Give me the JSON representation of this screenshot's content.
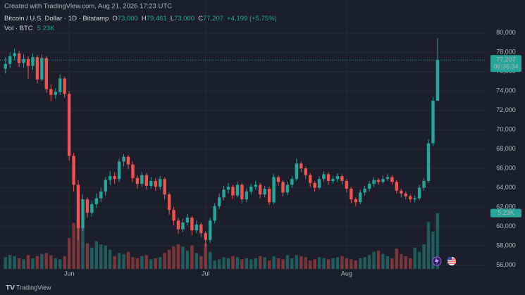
{
  "header": {
    "created": "Created with TradingView.com, Aug 21, 2026 17:23 UTC",
    "symbol": "Bitcoin / U.S. Dollar · 1D · Bitstamp",
    "ohlc": [
      {
        "key": "O",
        "text": "73,000"
      },
      {
        "key": "H",
        "text": "79,461"
      },
      {
        "key": "L",
        "text": "73,000"
      },
      {
        "key": "C",
        "text": "77,207"
      }
    ],
    "change": "+4,199 (+5.75%)",
    "volume_legend": "Vol · BTC",
    "volume_text": "5.23K"
  },
  "chart_data": {
    "type": "candlestick",
    "up_color": "#26a69a",
    "down_color": "#ef5350",
    "grid": true,
    "xlim": [
      -1.2,
      105.7
    ],
    "xticks": [
      {
        "value": 14,
        "label": "Jun"
      },
      {
        "value": 44,
        "label": "Jul"
      },
      {
        "value": 75,
        "label": "Aug"
      }
    ],
    "ylim": [
      55600,
      80500
    ],
    "yticks": [
      {
        "value": 56000,
        "label": "56,000"
      },
      {
        "value": 58000,
        "label": "58,000"
      },
      {
        "value": 60000,
        "label": "60,000"
      },
      {
        "value": 62000,
        "label": "62,000"
      },
      {
        "value": 64000,
        "label": "64,000"
      },
      {
        "value": 66000,
        "label": "66,000"
      },
      {
        "value": 68000,
        "label": "68,000"
      },
      {
        "value": 70000,
        "label": "70,000"
      },
      {
        "value": 72000,
        "label": "72,000"
      },
      {
        "value": 74000,
        "label": "74,000"
      },
      {
        "value": 76000,
        "label": "76,000"
      },
      {
        "value": 78000,
        "label": "78,000"
      },
      {
        "value": 80000,
        "label": "80,000"
      }
    ],
    "vlim": [
      0,
      5600
    ],
    "open": [
      76300,
      76800,
      77600,
      77900,
      76900,
      77300,
      76600,
      77500,
      75200,
      77400,
      74200,
      73600,
      73900,
      75300,
      73700,
      67300,
      64300,
      59800,
      62800,
      61400,
      62300,
      62900,
      63600,
      64800,
      65200,
      64900,
      66700,
      67200,
      66400,
      65000,
      64400,
      65300,
      64200,
      64700,
      64100,
      64900,
      63300,
      61700,
      60600,
      59700,
      60400,
      60900,
      59600,
      60200,
      59300,
      58600,
      60600,
      62100,
      63000,
      63800,
      64100,
      63200,
      64300,
      62800,
      63600,
      64100,
      64300,
      63300,
      63900,
      62500,
      65100,
      64600,
      63500,
      64300,
      64900,
      66500,
      66000,
      65300,
      64500,
      64000,
      64900,
      65400,
      64700,
      64900,
      65200,
      64700,
      63900,
      62800,
      62500,
      63500,
      63900,
      64400,
      64800,
      64600,
      64900,
      65100,
      64600,
      63700,
      63400,
      63100,
      62800,
      62900,
      64000,
      64700,
      68600,
      73000
    ],
    "high": [
      77500,
      78000,
      78400,
      78200,
      77800,
      77600,
      77900,
      77700,
      77800,
      77600,
      74700,
      74300,
      75700,
      75500,
      74000,
      67600,
      64800,
      63300,
      63000,
      62700,
      63400,
      64000,
      65100,
      65700,
      65600,
      67000,
      67500,
      67400,
      66700,
      65300,
      65600,
      65500,
      65100,
      65000,
      65200,
      65100,
      63500,
      62000,
      60900,
      60800,
      61300,
      61100,
      60600,
      60400,
      59500,
      60900,
      62400,
      63400,
      64200,
      64500,
      64300,
      64600,
      64500,
      63900,
      64400,
      64700,
      64500,
      64200,
      64100,
      65400,
      65300,
      64800,
      64600,
      65200,
      67000,
      66700,
      66200,
      65500,
      64700,
      65200,
      65700,
      65600,
      65200,
      65500,
      65400,
      64900,
      64100,
      63000,
      63800,
      64200,
      64700,
      65100,
      65000,
      65300,
      65400,
      65300,
      64800,
      63900,
      63600,
      63300,
      63200,
      64300,
      65000,
      69000,
      73400,
      79461
    ],
    "low": [
      75800,
      76400,
      77200,
      76500,
      76400,
      75300,
      76200,
      74800,
      75000,
      73800,
      72900,
      73200,
      73600,
      73300,
      66800,
      63600,
      58600,
      59500,
      60900,
      61000,
      61900,
      62500,
      63200,
      64300,
      64400,
      64600,
      66200,
      65900,
      64600,
      63900,
      64100,
      63800,
      63900,
      63700,
      63800,
      62800,
      61200,
      60100,
      59200,
      59400,
      60100,
      59100,
      59300,
      58900,
      57900,
      58300,
      60300,
      61800,
      62700,
      63400,
      62800,
      63000,
      62400,
      62500,
      63300,
      63800,
      62900,
      63000,
      62200,
      62300,
      64200,
      63100,
      63200,
      64000,
      64700,
      65600,
      64900,
      64100,
      63600,
      63800,
      64600,
      64300,
      64400,
      64600,
      64300,
      63500,
      62400,
      62100,
      62300,
      63200,
      63600,
      64100,
      64300,
      64400,
      64700,
      64300,
      63400,
      63000,
      62800,
      62500,
      62500,
      62700,
      63700,
      64500,
      68300,
      73000
    ],
    "close": [
      76800,
      77600,
      77900,
      76900,
      77300,
      76600,
      77500,
      75200,
      77400,
      74200,
      73600,
      73900,
      75300,
      73700,
      67300,
      64300,
      59800,
      62800,
      61400,
      62300,
      62900,
      63600,
      64800,
      65200,
      64900,
      66700,
      67200,
      66400,
      65000,
      64400,
      65300,
      64200,
      64700,
      64100,
      64900,
      63300,
      61700,
      60600,
      59700,
      60400,
      60900,
      59600,
      60200,
      59300,
      58600,
      60600,
      62100,
      63000,
      63800,
      64100,
      63200,
      64300,
      62800,
      63600,
      64100,
      64300,
      63300,
      63900,
      62500,
      65100,
      64600,
      63500,
      64300,
      64900,
      66500,
      66000,
      65300,
      64500,
      64000,
      64900,
      65400,
      64700,
      64900,
      65200,
      64700,
      63900,
      62800,
      62500,
      63500,
      63900,
      64400,
      64800,
      64600,
      64900,
      65100,
      64600,
      63700,
      63400,
      63100,
      62800,
      62900,
      64000,
      64700,
      68600,
      73000,
      77207
    ],
    "volume": [
      1100,
      1300,
      1200,
      1000,
      900,
      1300,
      1000,
      1200,
      1400,
      1500,
      1300,
      1000,
      900,
      1200,
      2900,
      4300,
      4700,
      3800,
      2400,
      2000,
      2600,
      2300,
      2200,
      1800,
      1200,
      1500,
      1400,
      1600,
      1100,
      1000,
      1200,
      1300,
      900,
      1000,
      1100,
      1500,
      1800,
      2100,
      2300,
      2100,
      1700,
      2200,
      1500,
      1200,
      2400,
      1600,
      800,
      900,
      1100,
      1000,
      1200,
      1100,
      900,
      1000,
      900,
      1000,
      1200,
      1100,
      800,
      1200,
      1000,
      900,
      1300,
      1000,
      1300,
      1200,
      1100,
      800,
      900,
      1100,
      1000,
      900,
      1000,
      1100,
      1200,
      1000,
      900,
      800,
      1000,
      1100,
      1300,
      1600,
      1700,
      1400,
      1200,
      1000,
      1900,
      1400,
      1200,
      1000,
      2000,
      1600,
      2300,
      4400,
      3500,
      5230
    ],
    "price_label": {
      "value": 77207,
      "label": "77,207"
    },
    "countdown": "06:36:34",
    "volume_label": {
      "value": 5230,
      "label": "5.23K"
    }
  },
  "footer": {
    "brand": "TradingView"
  }
}
